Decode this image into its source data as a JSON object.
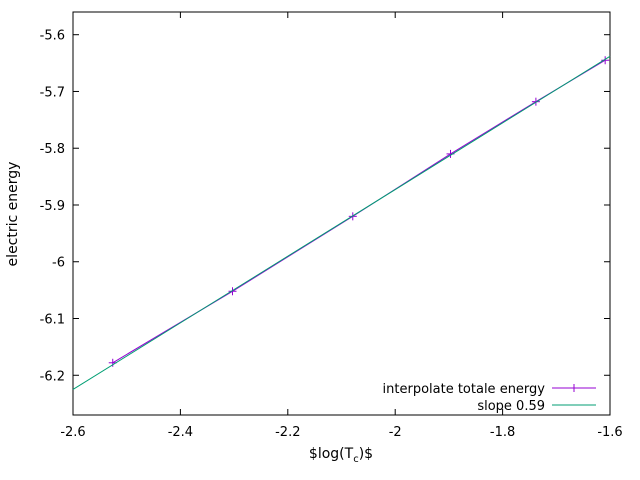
{
  "chart_data": {
    "type": "line",
    "title": "",
    "xlabel": "$log(T",
    "xlabel_sub": "c",
    "xlabel_tail": ")$",
    "ylabel": "electric energy",
    "xlim": [
      -2.6,
      -1.6
    ],
    "ylim": [
      -6.27,
      -5.56
    ],
    "xticks": [
      -2.6,
      -2.4,
      -2.2,
      -2.0,
      -1.8,
      -1.6
    ],
    "xtick_labels": [
      "-2.6",
      "-2.4",
      "-2.2",
      "-2",
      "-1.8",
      "-1.6"
    ],
    "yticks": [
      -6.2,
      -6.1,
      -6.0,
      -5.9,
      -5.8,
      -5.7,
      -5.6
    ],
    "ytick_labels": [
      "-6.2",
      "-6.1",
      "-6",
      "-5.9",
      "-5.8",
      "-5.7",
      "-5.6"
    ],
    "grid": false,
    "legend_position": "bottom-right",
    "series": [
      {
        "name": "interpolate totale energy",
        "color": "#9400d3",
        "marker": "plus",
        "x": [
          -2.526,
          -2.303,
          -2.079,
          -1.897,
          -1.738,
          -1.609
        ],
        "y": [
          -6.178,
          -6.052,
          -5.92,
          -5.81,
          -5.718,
          -5.645
        ]
      },
      {
        "name": "slope 0.59",
        "color": "#009e73",
        "marker": "none",
        "x": [
          -2.6,
          -1.6
        ],
        "y": [
          -6.225,
          -5.638
        ]
      }
    ]
  }
}
